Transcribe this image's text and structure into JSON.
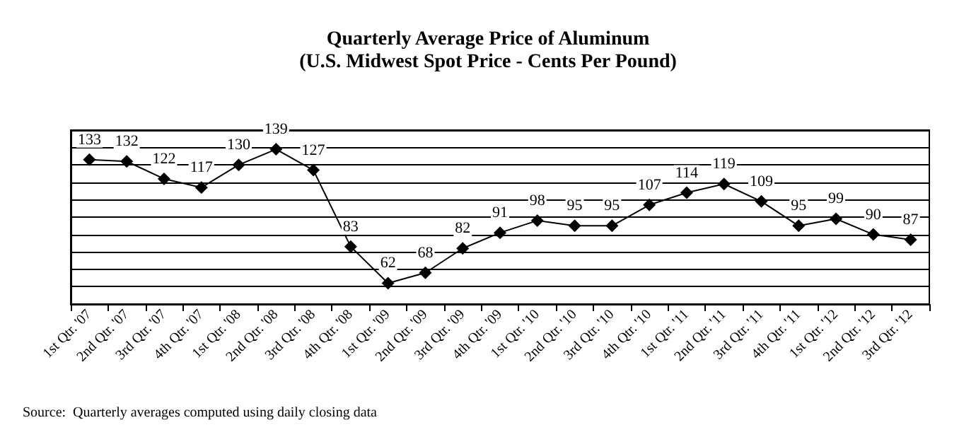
{
  "chart_data": {
    "type": "line",
    "title": "Quarterly Average Price of Aluminum",
    "subtitle": "(U.S. Midwest Spot Price - Cents Per Pound)",
    "categories": [
      "1st Qtr. '07",
      "2nd Qtr. '07",
      "3rd Qtr. '07",
      "4th Qtr. '07",
      "1st Qtr. '08",
      "2nd Qtr. '08",
      "3rd Qtr. '08",
      "4th Qtr. '08",
      "1st Qtr. '09",
      "2nd Qtr. '09",
      "3rd Qtr. '09",
      "4th Qtr. '09",
      "1st Qtr. '10",
      "2nd Qtr. '10",
      "3rd Qtr. '10",
      "4th Qtr. '10",
      "1st Qtr. '11",
      "2nd Qtr. '11",
      "3rd Qtr. '11",
      "4th Qtr. '11",
      "1st Qtr. '12",
      "2nd Qtr. '12",
      "3rd Qtr. '12"
    ],
    "series": [
      {
        "color": "#000000",
        "values": [
          133,
          132,
          122,
          117,
          130,
          139,
          127,
          83,
          62,
          68,
          82,
          91,
          98,
          95,
          95,
          107,
          114,
          119,
          109,
          95,
          99,
          90,
          87
        ]
      }
    ],
    "ylim": [
      50,
      150
    ],
    "yticks": [
      {
        "value": 50,
        "label": null
      },
      {
        "value": 60,
        "label": null
      },
      {
        "value": 70,
        "label": null
      },
      {
        "value": 80,
        "label": null
      },
      {
        "value": 90,
        "label": null
      },
      {
        "value": 100,
        "label": null
      },
      {
        "value": 110,
        "label": null
      },
      {
        "value": 120,
        "label": null
      },
      {
        "value": 130,
        "label": null
      },
      {
        "value": 140,
        "label": null
      },
      {
        "value": 150,
        "label": null
      }
    ],
    "grid": "y",
    "tick_labels": "x",
    "marker": "diamond",
    "line_style": "solid",
    "data_labels": true,
    "annotations": [
      "Source:  Quarterly averages computed using daily closing data"
    ]
  }
}
